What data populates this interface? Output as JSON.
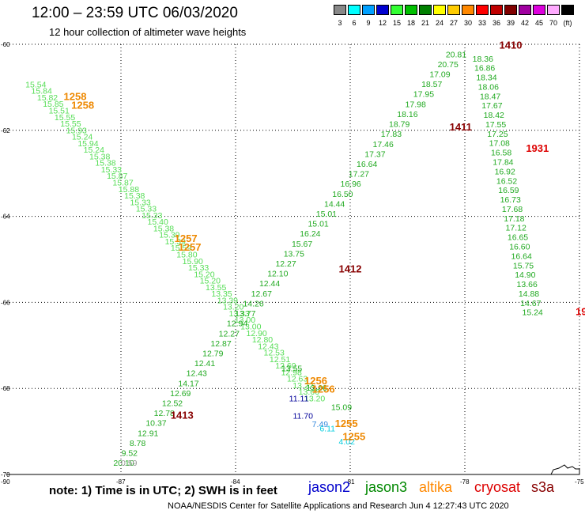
{
  "header": {
    "title": "12:00 – 23:59 UTC 06/03/2020",
    "subtitle": "12 hour collection of altimeter wave heights"
  },
  "colorbar": {
    "unit": "(ft)",
    "bins": [
      {
        "label": "3",
        "color": "#888888"
      },
      {
        "label": "6",
        "color": "#00ffff"
      },
      {
        "label": "9",
        "color": "#00a0ff"
      },
      {
        "label": "12",
        "color": "#0000d0"
      },
      {
        "label": "15",
        "color": "#33ff33"
      },
      {
        "label": "18",
        "color": "#00c000"
      },
      {
        "label": "21",
        "color": "#008000"
      },
      {
        "label": "24",
        "color": "#ffff00"
      },
      {
        "label": "27",
        "color": "#ffcc00"
      },
      {
        "label": "30",
        "color": "#ff8800"
      },
      {
        "label": "33",
        "color": "#ff0000"
      },
      {
        "label": "36",
        "color": "#c00000"
      },
      {
        "label": "39",
        "color": "#800000"
      },
      {
        "label": "42",
        "color": "#a000a0"
      },
      {
        "label": "45",
        "color": "#dd00dd"
      },
      {
        "label": "70",
        "color": "#ffaaff"
      },
      {
        "label": "",
        "color": "#000000"
      }
    ]
  },
  "map": {
    "lon_range": [
      -90,
      -75
    ],
    "lat_range": [
      -70,
      -60
    ],
    "lon_ticks": [
      "-87",
      "-84",
      "-81",
      "-78",
      "-75"
    ],
    "lon_tick_values": [
      -87,
      -84,
      -81,
      -78,
      -75
    ],
    "lon_left_label": "-90",
    "lat_ticks": [
      "-60",
      "-62",
      "-64",
      "-66",
      "-68",
      "-70"
    ],
    "lat_tick_values": [
      -60,
      -62,
      -64,
      -66,
      -68,
      -70
    ],
    "grid": "dotted"
  },
  "colors": {
    "light_green": "#55dd55",
    "green": "#22aa22",
    "dark_blue": "#000099",
    "blue": "#3388dd",
    "cyan": "#00ccdd",
    "gray": "#999999",
    "orange": "#ee8800",
    "dark_red": "#880000",
    "red": "#dd0000"
  },
  "tracks": {
    "track_nw": {
      "color": "#55dd55",
      "start": [
        -89.5,
        -61.0
      ],
      "end": [
        -82.2,
        -68.3
      ],
      "values": [
        "15.54",
        "15.84",
        "15.82",
        "15.85",
        "15.51",
        "15.55",
        "15.55",
        "15.93",
        "15.24",
        "15.94",
        "15.24",
        "15.38",
        "15.38",
        "15.33",
        "15.87",
        "15.87",
        "15.88",
        "15.38",
        "15.33",
        "15.33",
        "15.33",
        "15.40",
        "15.38",
        "15.39",
        "15.39",
        "15.59",
        "15.80",
        "15.90",
        "15.33",
        "15.20",
        "15.20",
        "13.55",
        "13.35",
        "13.39",
        "13.20",
        "13.33",
        "13.00",
        "13.00",
        "12.90",
        "12.80",
        "12.43",
        "12.53",
        "12.51",
        "12.60",
        "12.98",
        "12.63",
        "13.22",
        "13.66",
        "13.20"
      ]
    },
    "track_se": {
      "color": "#22aa22",
      "start": [
        -82.8,
        -67.6
      ],
      "end": [
        -81.5,
        -68.5
      ],
      "values": [
        "13.55",
        "13.66",
        "15.09"
      ]
    },
    "track_alt_low": [
      {
        "text": "11.11",
        "lon": -82.6,
        "lat": -68.3,
        "color": "#000099"
      },
      {
        "text": "11.70",
        "lon": -82.5,
        "lat": -68.7,
        "color": "#000099"
      },
      {
        "text": "7.49",
        "lon": -82.0,
        "lat": -68.9,
        "color": "#3388dd"
      },
      {
        "text": "6.11",
        "lon": -81.8,
        "lat": -69.0,
        "color": "#00ccdd"
      },
      {
        "text": "4.02",
        "lon": -81.3,
        "lat": -69.3,
        "color": "#00ccdd"
      }
    ],
    "track_ne": {
      "color": "#22aa22",
      "start": [
        -87.2,
        -69.8
      ],
      "end": [
        -78.5,
        -60.3
      ],
      "values": [
        "20.10",
        "9.52",
        "8.78",
        "12.91",
        "10.37",
        "12.78",
        "12.52",
        "12.69",
        "14.17",
        "12.43",
        "12.41",
        "12.79",
        "12.87",
        "12.27",
        "12.94",
        "13.77",
        "14.26",
        "12.67",
        "12.44",
        "12.10",
        "12.27",
        "13.75",
        "15.67",
        "16.24",
        "15.01",
        "15.01",
        "14.44",
        "16.50",
        "16.96",
        "17.27",
        "16.64",
        "17.37",
        "17.46",
        "17.83",
        "18.79",
        "18.16",
        "17.98",
        "17.95",
        "18.57",
        "17.09",
        "20.75",
        "20.81"
      ]
    },
    "track_se2": {
      "color": "#22aa22",
      "start": [
        -77.8,
        -60.4
      ],
      "end": [
        -76.5,
        -66.3
      ],
      "values": [
        "18.36",
        "16.86",
        "18.34",
        "18.06",
        "18.47",
        "17.67",
        "18.42",
        "17.55",
        "17.25",
        "17.08",
        "16.58",
        "17.84",
        "16.92",
        "16.52",
        "16.59",
        "16.73",
        "17.68",
        "17.18",
        "17.12",
        "16.65",
        "16.60",
        "16.64",
        "15.75",
        "14.90",
        "13.66",
        "14.88",
        "14.67",
        "15.24"
      ]
    }
  },
  "special_values": [
    {
      "text": "0.59",
      "lon": -87.0,
      "lat": -69.8,
      "color": "#999999"
    }
  ],
  "pass_labels": [
    {
      "text": "1258",
      "lon": -88.5,
      "lat": -61.3,
      "color": "#ee8800"
    },
    {
      "text": "1258",
      "lon": -88.3,
      "lat": -61.5,
      "color": "#ee8800"
    },
    {
      "text": "1257",
      "lon": -85.6,
      "lat": -64.6,
      "color": "#ee8800"
    },
    {
      "text": "1257",
      "lon": -85.5,
      "lat": -64.8,
      "color": "#ee8800"
    },
    {
      "text": "1256",
      "lon": -82.2,
      "lat": -67.9,
      "color": "#ee8800"
    },
    {
      "text": "1256",
      "lon": -82.0,
      "lat": -68.1,
      "color": "#ee8800"
    },
    {
      "text": "1255",
      "lon": -81.4,
      "lat": -68.9,
      "color": "#ee8800"
    },
    {
      "text": "1255",
      "lon": -81.2,
      "lat": -69.2,
      "color": "#ee8800"
    },
    {
      "text": "1413",
      "lon": -85.7,
      "lat": -68.7,
      "color": "#880000"
    },
    {
      "text": "1412",
      "lon": -81.3,
      "lat": -65.3,
      "color": "#880000"
    },
    {
      "text": "1411",
      "lon": -78.4,
      "lat": -62.0,
      "color": "#880000"
    },
    {
      "text": "1410",
      "lon": -77.1,
      "lat": -60.1,
      "color": "#880000"
    },
    {
      "text": "1931",
      "lon": -76.4,
      "lat": -62.5,
      "color": "#dd0000"
    },
    {
      "text": "19",
      "lon": -75.1,
      "lat": -66.3,
      "color": "#dd0000"
    }
  ],
  "footer": {
    "note": "note:  1) Time is in UTC;  2) SWH is in feet",
    "legend": [
      {
        "label": "jason2",
        "color": "#0000cc"
      },
      {
        "label": "jason3",
        "color": "#008800"
      },
      {
        "label": "altika",
        "color": "#ff8800"
      },
      {
        "label": "cryosat",
        "color": "#dd0000"
      },
      {
        "label": "s3a",
        "color": "#880000"
      }
    ],
    "credit": "NOAA/NESDIS Center for Satellite Applications and Research     Jun  4 12:27:43 UTC 2020"
  }
}
